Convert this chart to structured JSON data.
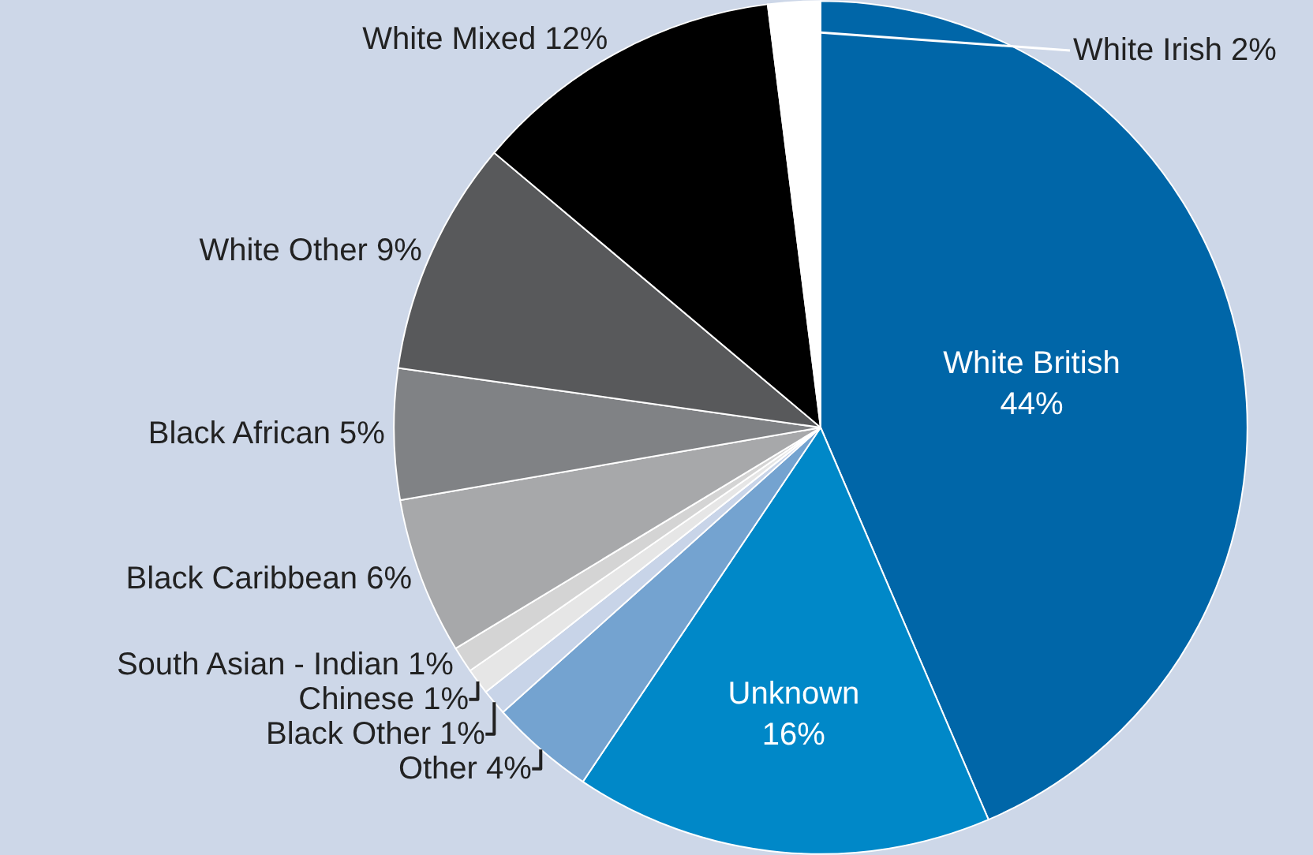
{
  "chart_data": {
    "type": "pie",
    "categories": [
      "White British",
      "Unknown",
      "Other",
      "Black Other",
      "Chinese",
      "South Asian - Indian",
      "Black Caribbean",
      "Black African",
      "White Other",
      "White Mixed",
      "White Irish"
    ],
    "values": [
      44,
      16,
      4,
      1,
      1,
      1,
      6,
      5,
      9,
      12,
      2
    ],
    "value_labels": [
      "44%",
      "16%",
      "4%",
      "1%",
      "1%",
      "1%",
      "6%",
      "5%",
      "9%",
      "12%",
      "2%"
    ],
    "colors": [
      "#0066a8",
      "#0088c8",
      "#74a3d0",
      "#c8d4e8",
      "#e6e6e6",
      "#d4d4d4",
      "#a7a8aa",
      "#808285",
      "#58595b",
      "#000000",
      "#ffffff"
    ],
    "legend": false
  }
}
